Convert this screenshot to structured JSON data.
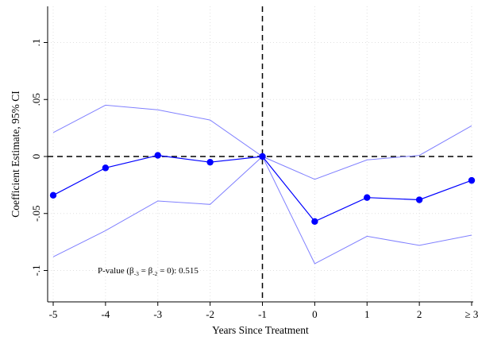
{
  "chart_data": {
    "type": "line",
    "title": "",
    "xlabel": "Years Since Treatment",
    "ylabel": "Coefficient Estimate, 95% CI",
    "categories": [
      "-5",
      "-4",
      "-3",
      "-2",
      "-1",
      "0",
      "1",
      "2",
      "≥ 3"
    ],
    "x": [
      -5,
      -4,
      -3,
      -2,
      -1,
      0,
      1,
      2,
      3
    ],
    "ylim": [
      -0.13,
      0.13
    ],
    "yticks": [
      -0.1,
      -0.05,
      0,
      0.05,
      0.1
    ],
    "ytick_labels": [
      "-.1",
      "-.05",
      "0",
      ".05",
      ".1"
    ],
    "grid": true,
    "reference_lines": {
      "x": -1,
      "y": 0,
      "style": "dashed"
    },
    "series": [
      {
        "role": "estimate",
        "values": [
          -0.034,
          -0.01,
          0.001,
          -0.005,
          0.0,
          -0.057,
          -0.036,
          -0.038,
          -0.021
        ]
      },
      {
        "role": "upper_ci",
        "values": [
          0.021,
          0.045,
          0.041,
          0.032,
          0.0,
          -0.02,
          -0.003,
          0.001,
          0.027
        ]
      },
      {
        "role": "lower_ci",
        "values": [
          -0.088,
          -0.065,
          -0.039,
          -0.042,
          0.0,
          -0.094,
          -0.07,
          -0.078,
          -0.069
        ]
      }
    ],
    "annotation": {
      "prefix": "P-value (β",
      "sub1": "-3",
      "mid": " = β",
      "sub2": "-2",
      "suffix": " = 0): 0.515"
    },
    "colors": {
      "estimate": "#0000ff",
      "ci": "#8080ff",
      "reference": "#000000",
      "grid": "#e0e0e0"
    }
  }
}
